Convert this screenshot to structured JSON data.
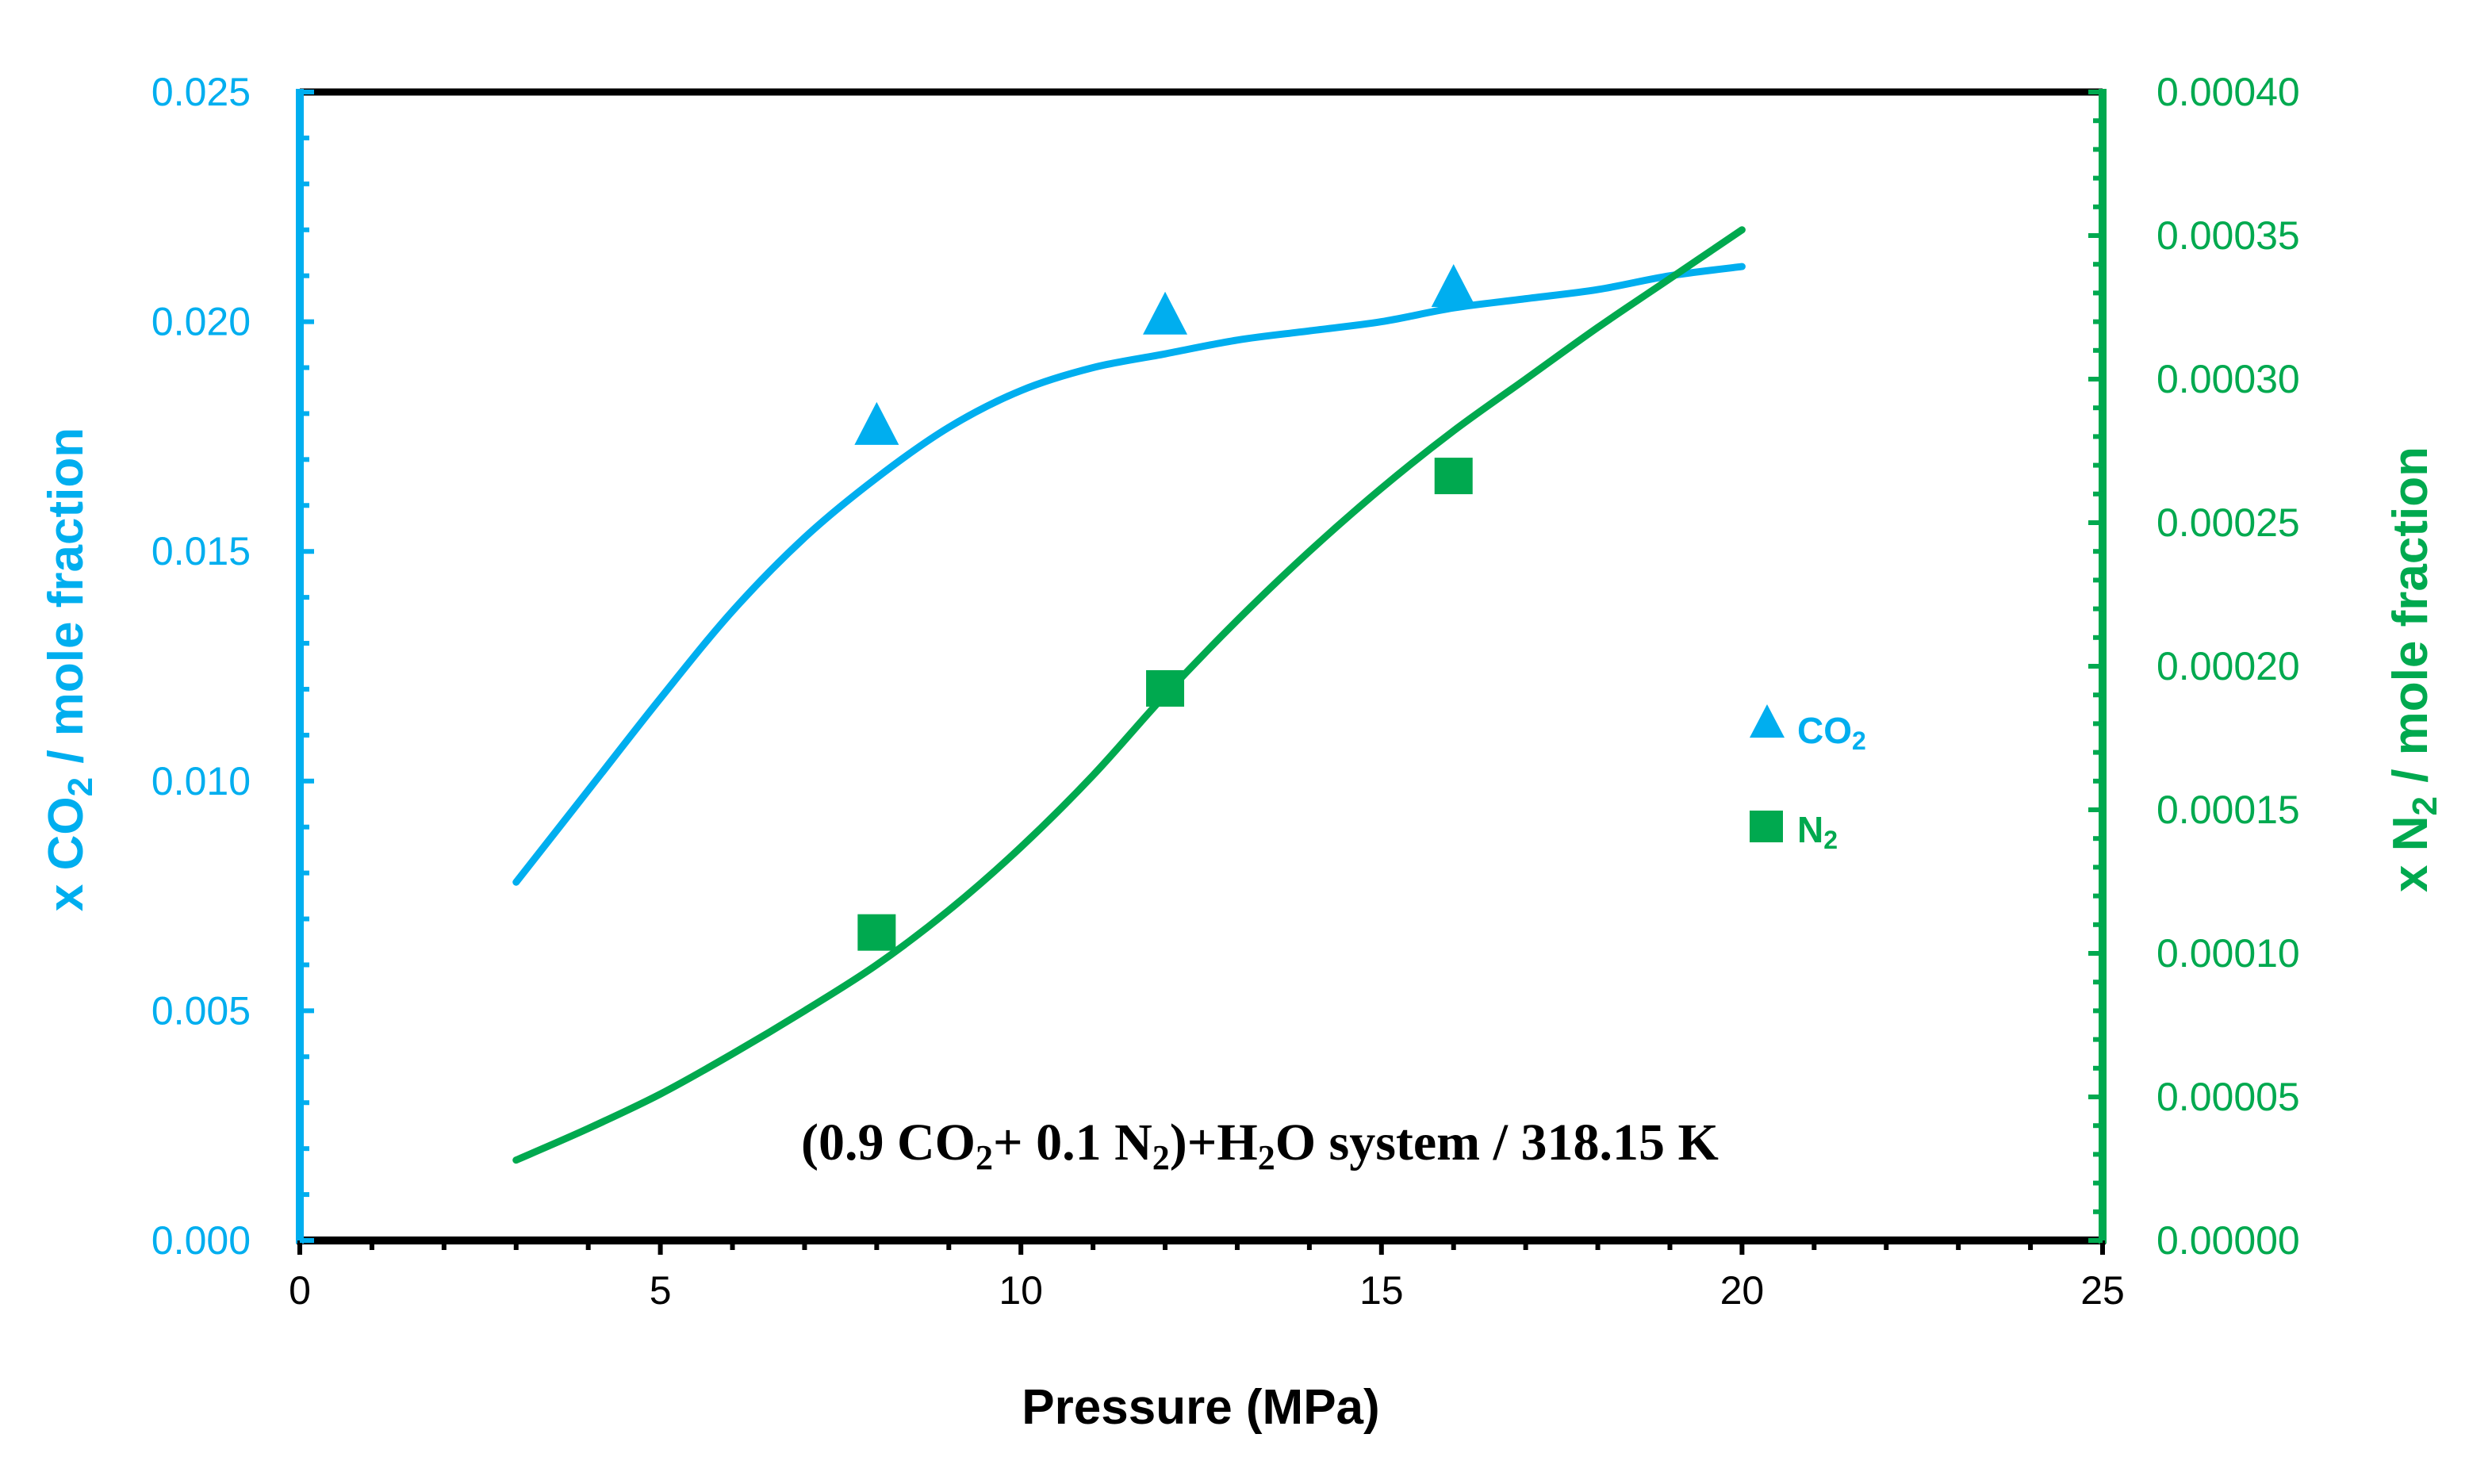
{
  "chart_data": {
    "type": "scatter",
    "annotation": {
      "prefix": "(0.9 CO",
      "sub1": "2",
      "mid1": "+ 0.1 N",
      "sub2": "2",
      "mid2": ")+H",
      "sub3": "2",
      "suffix": "O system / 318.15 K"
    },
    "xlabel": "Pressure (MPa)",
    "ylabel_left": {
      "prefix": "x CO",
      "sub": "2",
      "suffix": " / mole fraction"
    },
    "ylabel_right": {
      "prefix": "x N",
      "sub": "2",
      "suffix": " / mole fraction"
    },
    "xlim": [
      0,
      25
    ],
    "ylim_left": [
      0,
      0.025
    ],
    "ylim_right": [
      0,
      0.0004
    ],
    "x_ticks": [
      "0",
      "5",
      "10",
      "15",
      "20",
      "25"
    ],
    "y_left_ticks": [
      "0.000",
      "0.005",
      "0.010",
      "0.015",
      "0.020",
      "0.025"
    ],
    "y_right_ticks": [
      "0.00000",
      "0.00005",
      "0.00010",
      "0.00015",
      "0.00020",
      "0.00025",
      "0.00030",
      "0.00035",
      "0.00040"
    ],
    "legend": [
      {
        "name": "CO",
        "sub": "2",
        "marker": "triangle"
      },
      {
        "name": "N",
        "sub": "2",
        "marker": "square"
      }
    ],
    "legend_position": "center-right",
    "series": [
      {
        "name": "CO2 data",
        "axis": "left",
        "marker": "triangle",
        "x": [
          8,
          12,
          16
        ],
        "y": [
          0.0177,
          0.0201,
          0.0207
        ]
      },
      {
        "name": "N2 data",
        "axis": "right",
        "marker": "square",
        "x": [
          8,
          12,
          16
        ],
        "y": [
          0.000107,
          0.000192,
          0.000266
        ]
      },
      {
        "name": "CO2 fit",
        "axis": "left",
        "line": true,
        "x": [
          3,
          4,
          5,
          6,
          7,
          8,
          9,
          10,
          11,
          12,
          13,
          14,
          15,
          16,
          17,
          18,
          19,
          20
        ],
        "y": [
          0.0078,
          0.0098,
          0.0118,
          0.0137,
          0.0153,
          0.0166,
          0.0177,
          0.0185,
          0.019,
          0.0193,
          0.0196,
          0.0198,
          0.02,
          0.0203,
          0.0205,
          0.0207,
          0.021,
          0.0212
        ]
      },
      {
        "name": "N2 fit",
        "axis": "right",
        "line": true,
        "x": [
          3,
          4,
          5,
          6,
          7,
          8,
          9,
          10,
          11,
          12,
          13,
          14,
          15,
          16,
          17,
          18,
          19,
          20
        ],
        "y": [
          2.8e-05,
          3.9e-05,
          5.1e-05,
          6.5e-05,
          8e-05,
          9.6e-05,
          0.000115,
          0.000137,
          0.000162,
          0.00019,
          0.000216,
          0.00024,
          0.000262,
          0.000282,
          0.0003,
          0.000318,
          0.000335,
          0.000352
        ]
      }
    ]
  },
  "colors": {
    "co2": "#00AEEF",
    "n2": "#00A94F",
    "axis": "#000000"
  }
}
